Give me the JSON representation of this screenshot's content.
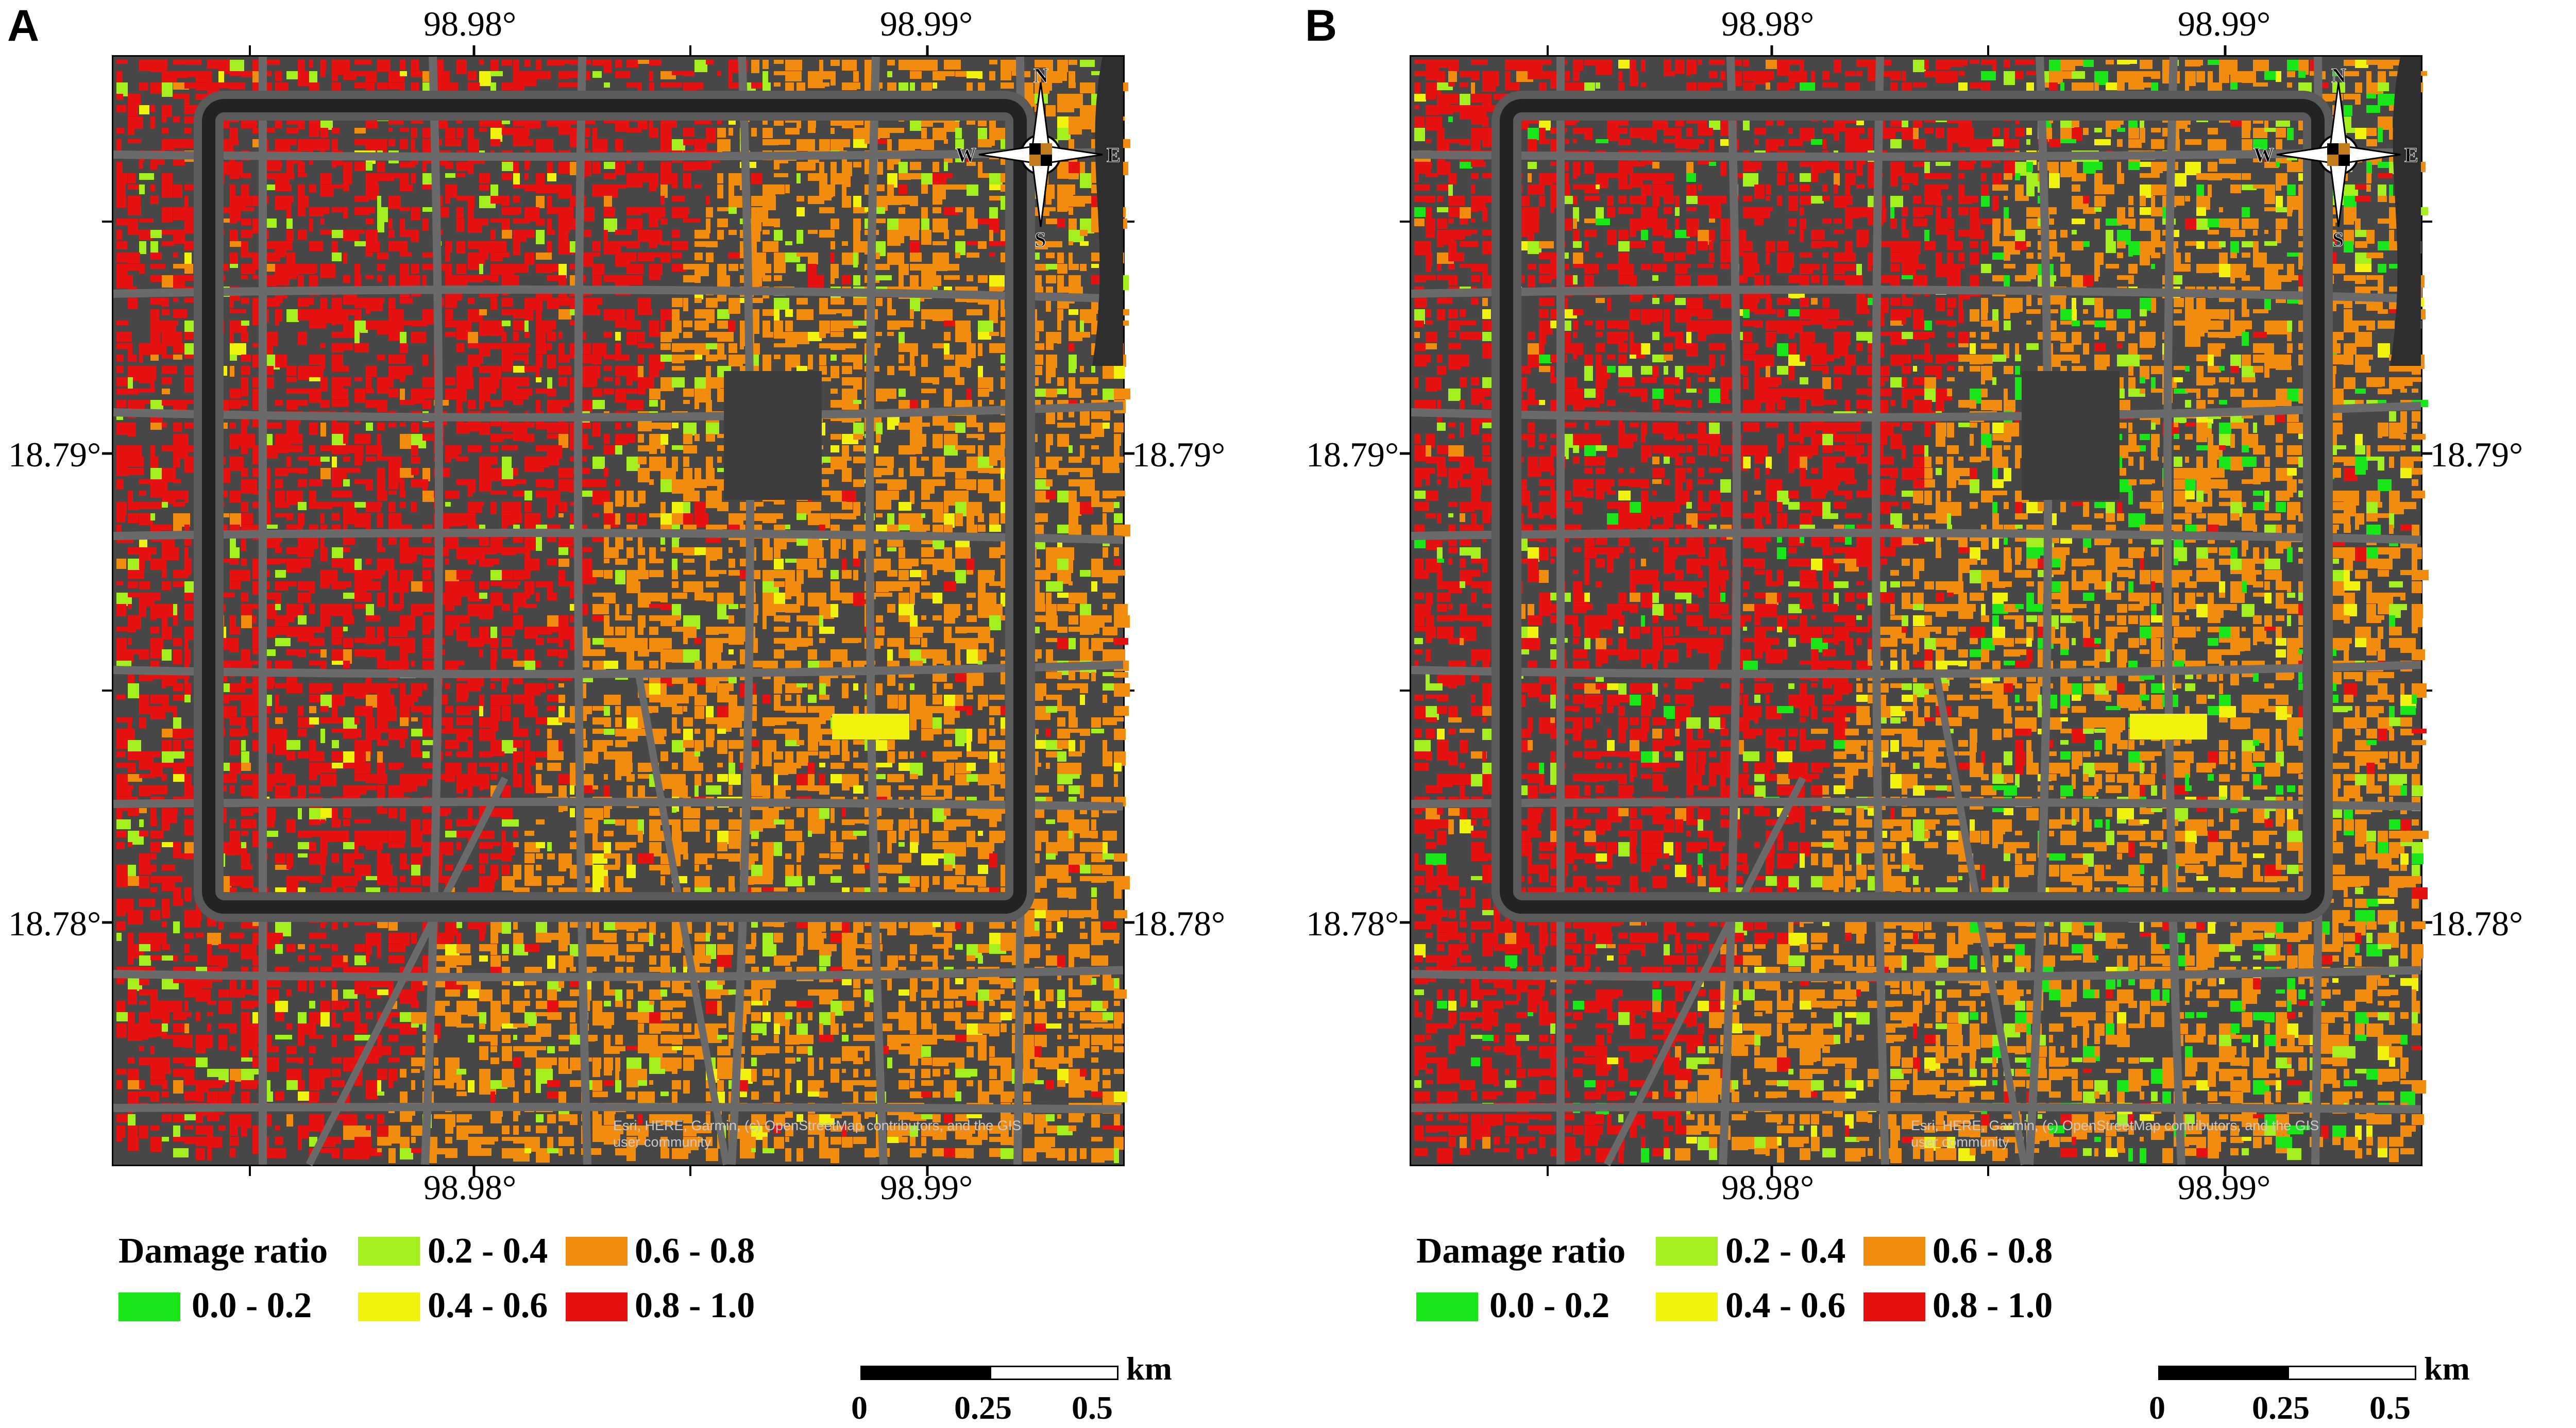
{
  "panels": [
    {
      "id": "a",
      "letter": "A",
      "x_ticks": [
        "98.98°",
        "98.99°"
      ],
      "y_ticks": [
        "18.79°",
        "18.78°"
      ],
      "attribution": "Esri, HERE, Garmin, (c) OpenStreetMap contributors, and the GIS user community",
      "variant": "A"
    },
    {
      "id": "b",
      "letter": "B",
      "x_ticks": [
        "98.98°",
        "98.99°"
      ],
      "y_ticks": [
        "18.79°",
        "18.78°"
      ],
      "attribution": "Esri, HERE, Garmin, (c) OpenStreetMap contributors, and the GIS user community",
      "variant": "B"
    }
  ],
  "compass": {
    "n": "N",
    "s": "S",
    "e": "E",
    "w": "W"
  },
  "legend": {
    "title": "Damage ratio",
    "classes": [
      {
        "label": "0.0 - 0.2",
        "color": "#19e619"
      },
      {
        "label": "0.2 - 0.4",
        "color": "#a3f01e"
      },
      {
        "label": "0.4 - 0.6",
        "color": "#f2f20f"
      },
      {
        "label": "0.6 - 0.8",
        "color": "#f28c0f"
      },
      {
        "label": "0.8 - 1.0",
        "color": "#e61212"
      }
    ]
  },
  "scale_bar": {
    "unit": "km",
    "labels": [
      "0",
      "0.25",
      "0.5"
    ]
  },
  "colors": {
    "basemap": "#474747",
    "road": "#6a6a6a",
    "moat": "#232323",
    "building_background": "#3a3a3a"
  }
}
